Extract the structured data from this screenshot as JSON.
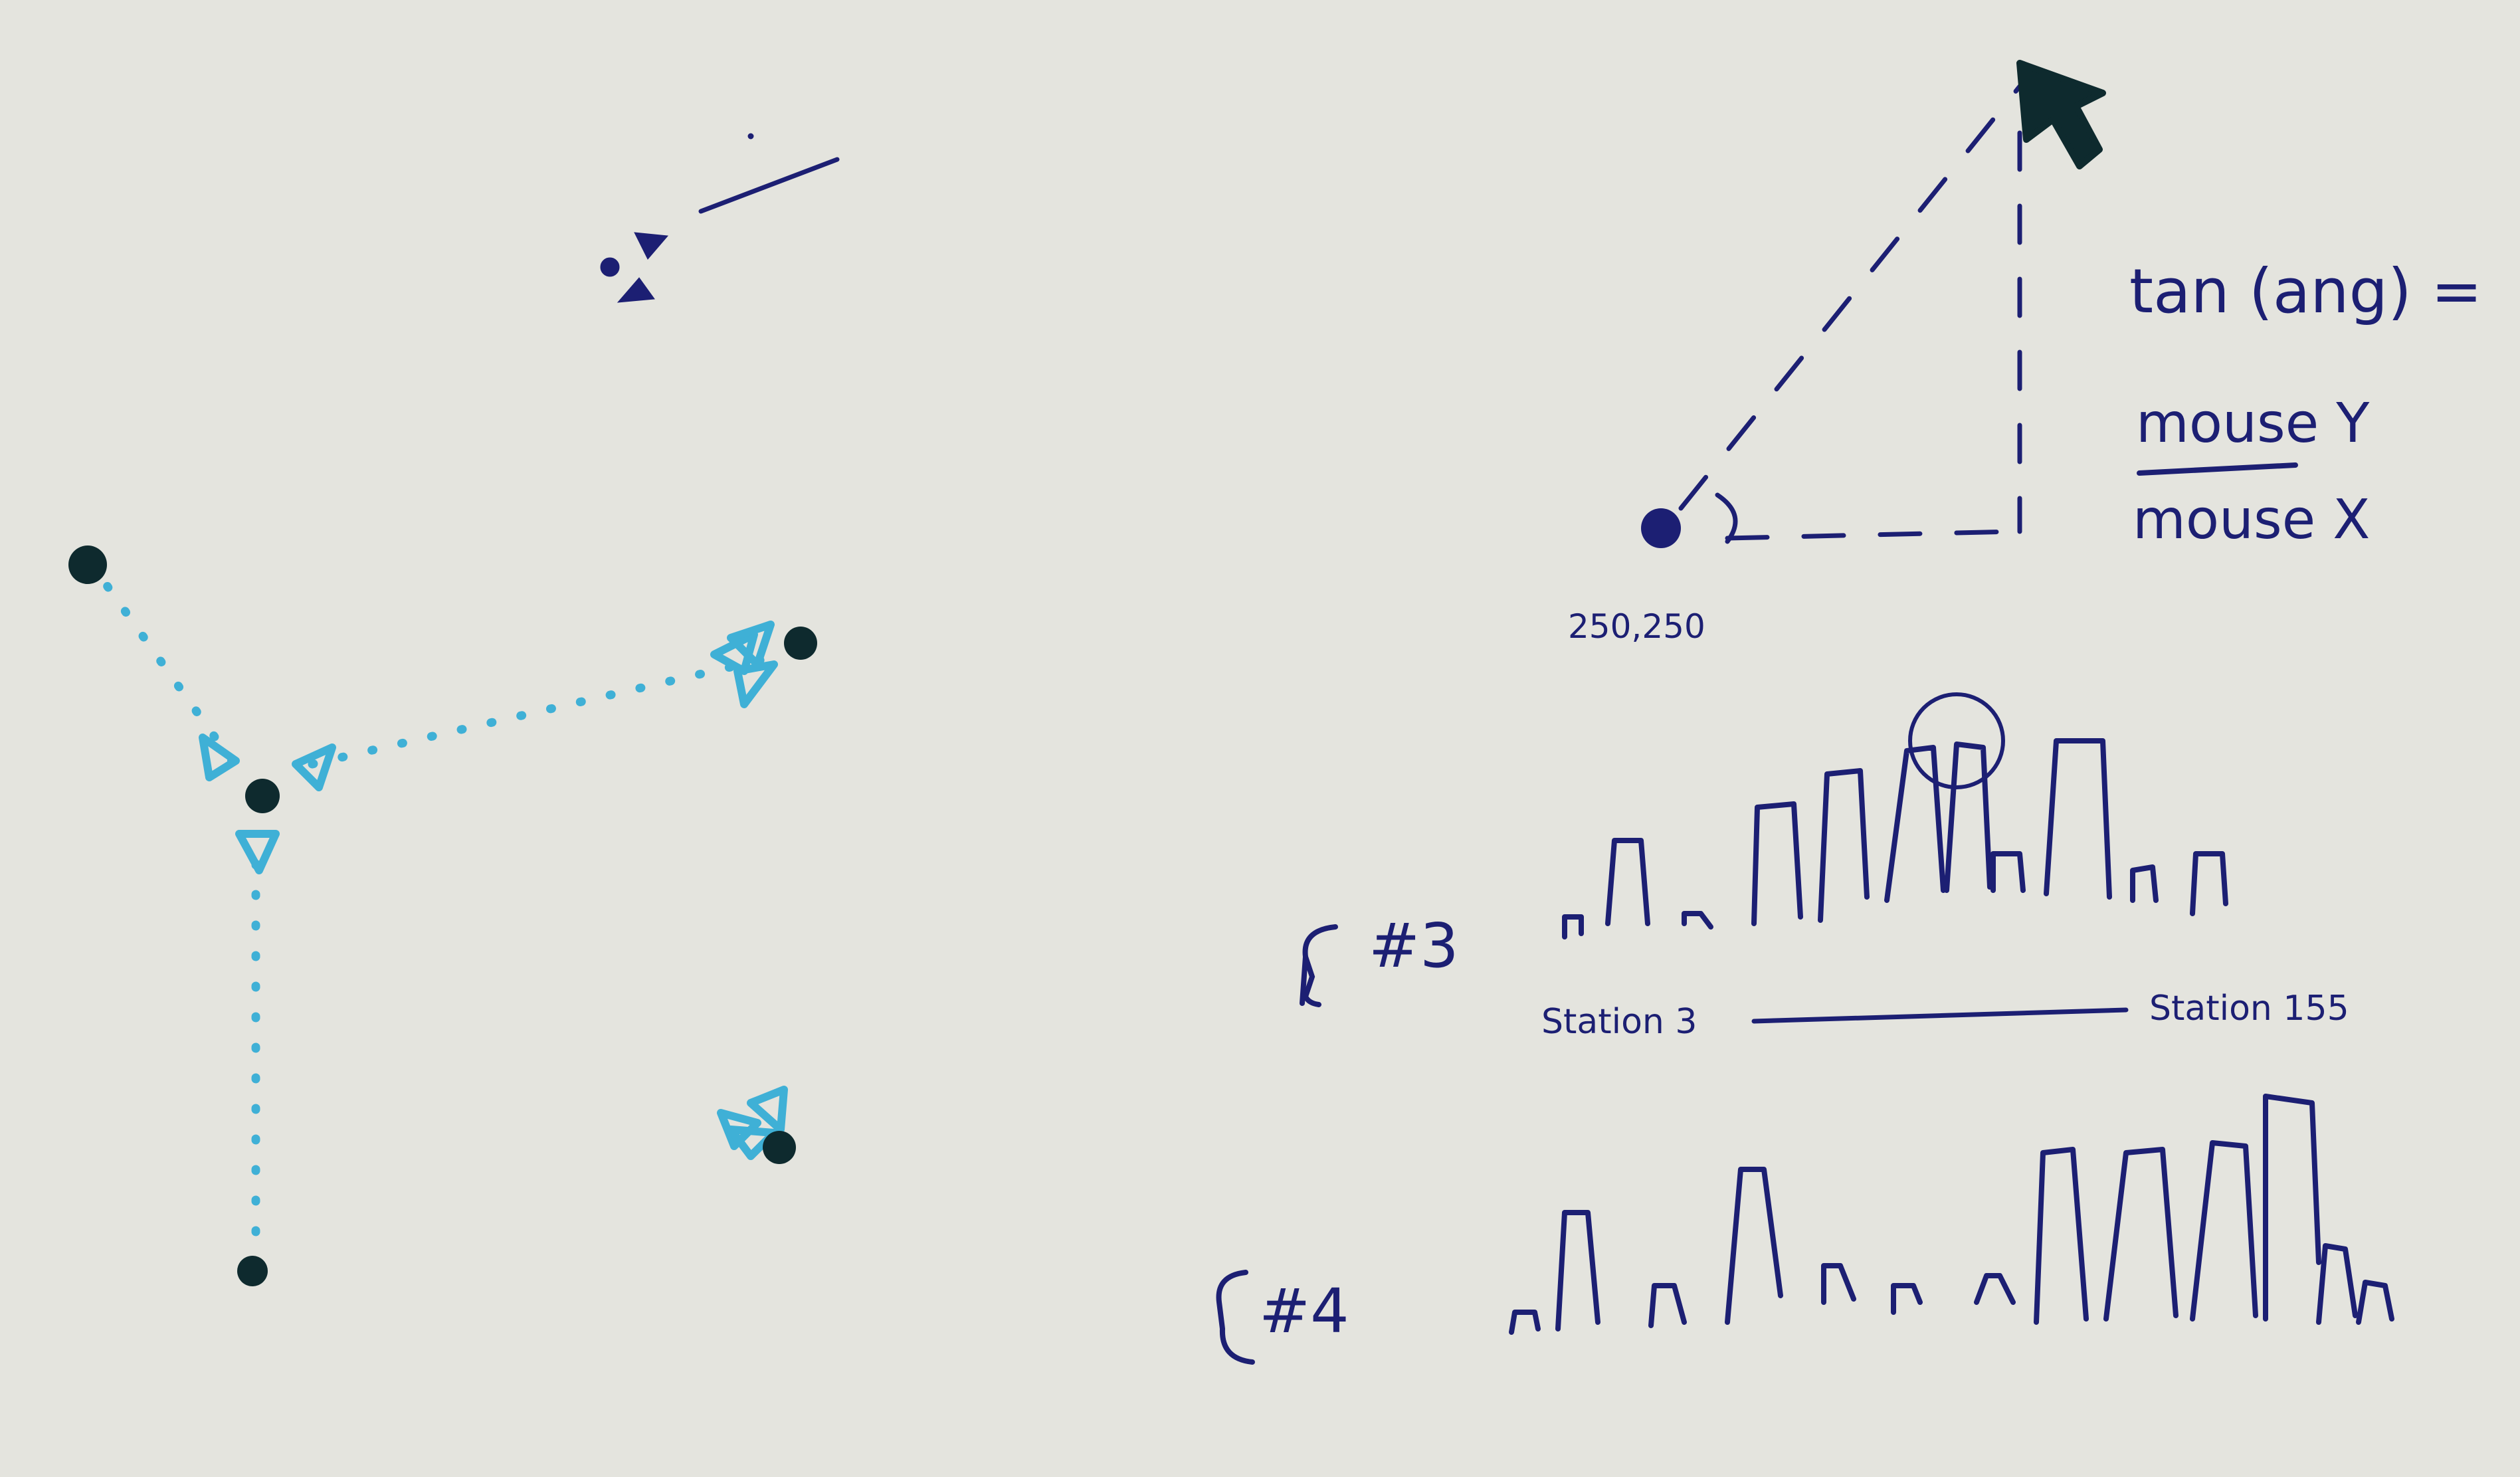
{
  "colors": {
    "paper": "#e4e4de",
    "ink_navy": "#1c1f73",
    "ink_cyan": "#3fb0d6",
    "ink_dark_teal": "#0e2a2e"
  },
  "angle_diagram": {
    "formula_lhs": "tan (ang) =",
    "numerator": "mouse Y",
    "denominator": "mouse X",
    "origin_label": "250,250",
    "cursor_icon": "arrow-cursor-icon"
  },
  "bar_sketch_3": {
    "bracket_label": "#3",
    "axis_start_label": "Station 3",
    "axis_end_label": "Station 155"
  },
  "bar_sketch_4": {
    "bracket_label": "#4"
  }
}
